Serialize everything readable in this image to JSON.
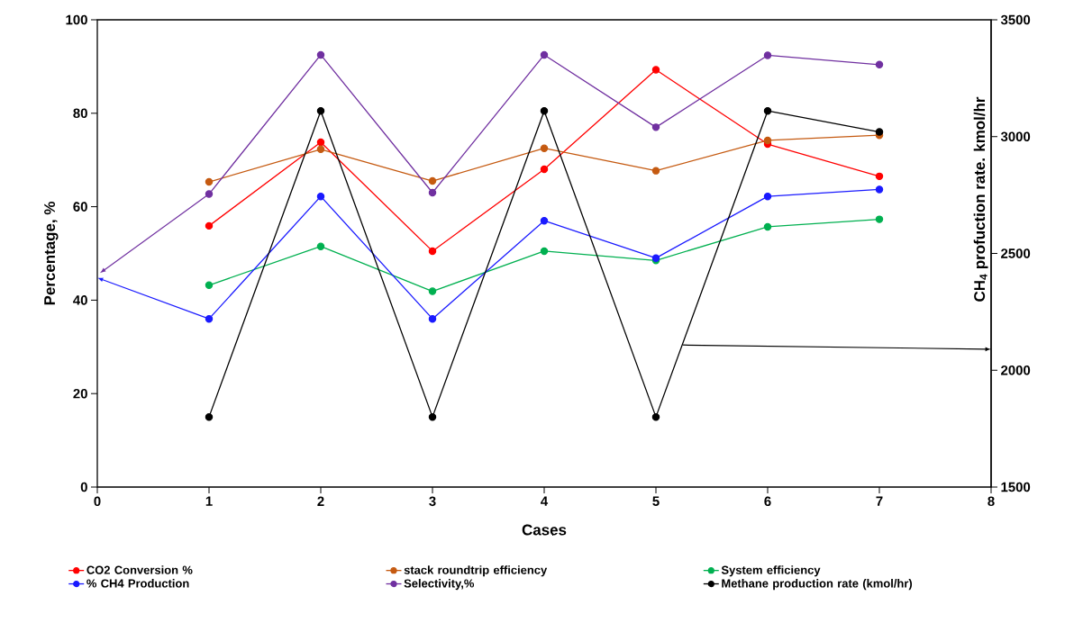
{
  "chart_data": {
    "type": "line",
    "xlabel": "Cases",
    "ylabel": "Percentage, %",
    "y2label": "CH$_{4}$ profuction rate. kmol/hr",
    "x": [
      1,
      2,
      3,
      4,
      5,
      6,
      7
    ],
    "series": [
      {
        "name": "CO2 Conversion %",
        "color": "#ff0000",
        "values": [
          55.9,
          73.8,
          50.5,
          68,
          89.3,
          73.4,
          66.5
        ]
      },
      {
        "name": "stack roundtrip efficiency",
        "color": "#c55a11",
        "values": [
          65.3,
          72.3,
          65.5,
          72.5,
          67.7,
          74.2,
          75.3
        ]
      },
      {
        "name": "System efficiency",
        "color": "#00b050",
        "values": [
          43.2,
          51.5,
          41.9,
          50.5,
          48.5,
          55.7,
          57.3
        ]
      },
      {
        "name": "% CH4 Production",
        "color": "#1a1aff",
        "values": [
          36,
          62.2,
          36,
          57,
          49,
          62.2,
          63.7
        ]
      },
      {
        "name": "Selectivity,%",
        "color": "#7030a0",
        "values": [
          62.7,
          92.5,
          63,
          92.5,
          77,
          92.4,
          90.4
        ]
      },
      {
        "name": "Methane production rate (kmol/hr)",
        "color": "#000000",
        "axis": "y2",
        "values": [
          1800,
          3110,
          1800,
          3110,
          1800,
          3110,
          3020
        ]
      }
    ],
    "xlim": [
      0,
      8
    ],
    "xticks": [
      0,
      1,
      2,
      3,
      4,
      5,
      6,
      7,
      8
    ],
    "ylim": [
      0,
      100
    ],
    "yticks": [
      0,
      20,
      40,
      60,
      80,
      100
    ],
    "y2lim": [
      1500,
      3500
    ],
    "y2ticks": [
      1500,
      2000,
      2500,
      3000,
      3500
    ],
    "grid": false,
    "legend": "bottom",
    "marker": "circle",
    "line_style": "solid"
  }
}
